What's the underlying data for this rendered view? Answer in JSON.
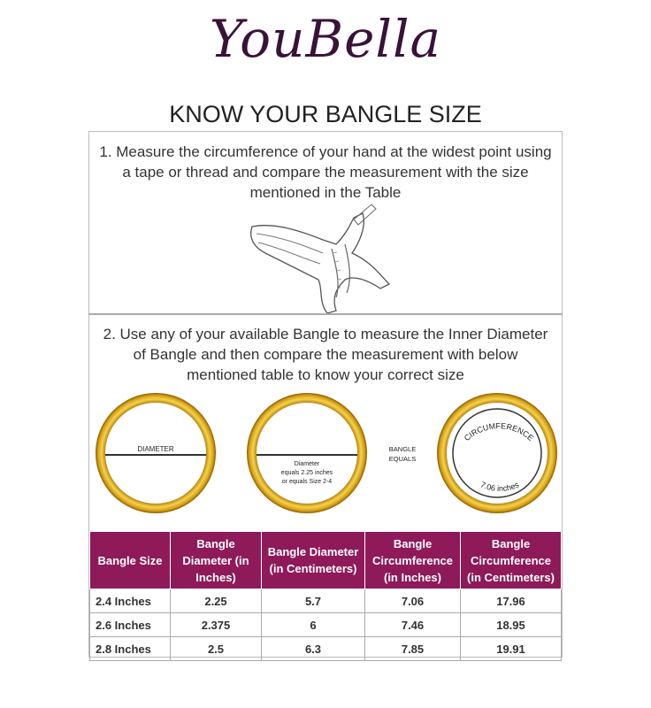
{
  "brand": {
    "logo_text": "YouBella"
  },
  "title": "KNOW YOUR BANGLE SIZE",
  "steps": [
    {
      "text": "1. Measure the circumference of your hand at the widest point using a tape or thread and compare the measurement with the size mentioned in the Table",
      "icon": "hand-measuring-tape-icon"
    },
    {
      "text": "2. Use any of your available Bangle to measure the Inner Diameter of Bangle and  then compare the measurement with below  mentioned table to know your correct size"
    }
  ],
  "rings": {
    "ring1_label": "DIAMETER",
    "ring2_label_line1": "Diameter",
    "ring2_label_line2": "equals 2.25 inches",
    "ring2_label_line3": "or equals Size 2-4",
    "equals_line1": "BANGLE",
    "equals_line2": "EQUALS",
    "ring3_top": "CIRCUMFERENCE",
    "ring3_bottom": "7.06 inches",
    "ring_color": "#d4a017"
  },
  "table": {
    "header_color": "#8e1a5a",
    "headers": [
      "Bangle Size",
      "Bangle Diameter (in Inches)",
      "Bangle Diameter (in Centimeters)",
      "Bangle Circumference (in Inches)",
      "Bangle Circumference (in Centimeters)"
    ],
    "rows": [
      [
        "2.4 Inches",
        "2.25",
        "5.7",
        "7.06",
        "17.96"
      ],
      [
        "2.6 Inches",
        "2.375",
        "6",
        "7.46",
        "18.95"
      ],
      [
        "2.8 Inches",
        "2.5",
        "6.3",
        "7.85",
        "19.91"
      ]
    ]
  }
}
